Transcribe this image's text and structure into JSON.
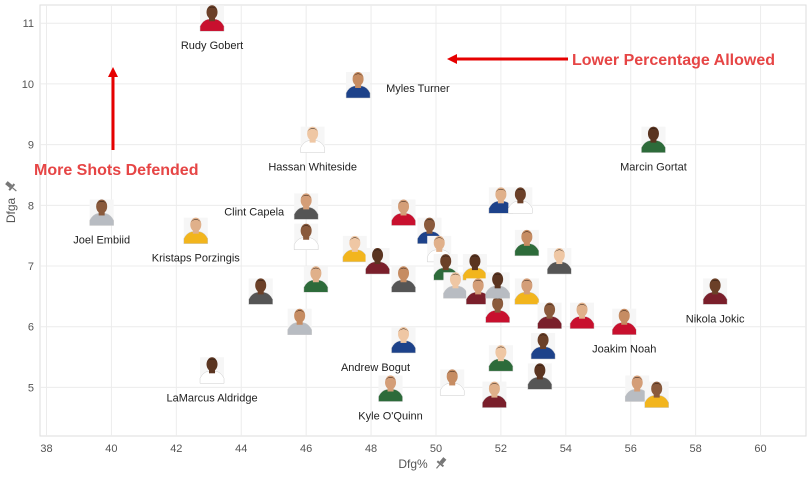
{
  "chart_data": {
    "type": "scatter",
    "xlabel": "Dfg%",
    "ylabel": "Dfga",
    "xlim": [
      37.8,
      61.4
    ],
    "ylim": [
      4.2,
      11.3
    ],
    "xticks": [
      38,
      40,
      42,
      44,
      46,
      48,
      50,
      52,
      54,
      56,
      58,
      60
    ],
    "yticks": [
      5,
      6,
      7,
      8,
      9,
      10,
      11
    ],
    "grid": true,
    "marker": "player-headshot",
    "annotations": [
      {
        "text": "More Shots Defended",
        "arrow": "up",
        "color": "#e64545"
      },
      {
        "text": "Lower Percentage Allowed",
        "arrow": "left",
        "color": "#e64545"
      }
    ],
    "labeled_points": [
      {
        "label": "Rudy Gobert",
        "x": 43.1,
        "y": 11.0
      },
      {
        "label": "Myles Turner",
        "x": 47.6,
        "y": 9.9
      },
      {
        "label": "Hassan Whiteside",
        "x": 46.2,
        "y": 9.0
      },
      {
        "label": "Marcin Gortat",
        "x": 56.7,
        "y": 9.0
      },
      {
        "label": "Clint Capela",
        "x": 46.0,
        "y": 7.9
      },
      {
        "label": "Joel Embiid",
        "x": 39.7,
        "y": 7.8
      },
      {
        "label": "Kristaps Porzingis",
        "x": 42.6,
        "y": 7.5
      },
      {
        "label": "Nikola Jokic",
        "x": 58.6,
        "y": 6.5
      },
      {
        "label": "Joakim Noah",
        "x": 55.8,
        "y": 6.0
      },
      {
        "label": "Andrew Bogut",
        "x": 49.0,
        "y": 5.7
      },
      {
        "label": "LaMarcus Aldridge",
        "x": 43.1,
        "y": 5.2
      },
      {
        "label": "Kyle O'Quinn",
        "x": 48.6,
        "y": 4.9
      }
    ],
    "other_points": [
      {
        "x": 46.0,
        "y": 7.4
      },
      {
        "x": 46.3,
        "y": 6.7
      },
      {
        "x": 44.6,
        "y": 6.5
      },
      {
        "x": 45.8,
        "y": 6.0
      },
      {
        "x": 47.5,
        "y": 7.2
      },
      {
        "x": 48.2,
        "y": 7.0
      },
      {
        "x": 49.0,
        "y": 7.8
      },
      {
        "x": 49.8,
        "y": 7.5
      },
      {
        "x": 50.1,
        "y": 7.2
      },
      {
        "x": 50.3,
        "y": 6.9
      },
      {
        "x": 49.0,
        "y": 6.7
      },
      {
        "x": 50.6,
        "y": 6.6
      },
      {
        "x": 51.2,
        "y": 6.9
      },
      {
        "x": 51.3,
        "y": 6.5
      },
      {
        "x": 51.9,
        "y": 6.2
      },
      {
        "x": 52.0,
        "y": 8.0
      },
      {
        "x": 52.6,
        "y": 8.0
      },
      {
        "x": 52.8,
        "y": 7.3
      },
      {
        "x": 53.8,
        "y": 7.0
      },
      {
        "x": 51.9,
        "y": 6.6
      },
      {
        "x": 52.8,
        "y": 6.5
      },
      {
        "x": 53.5,
        "y": 6.1
      },
      {
        "x": 54.5,
        "y": 6.1
      },
      {
        "x": 53.3,
        "y": 5.6
      },
      {
        "x": 50.5,
        "y": 5.0
      },
      {
        "x": 52.0,
        "y": 5.4
      },
      {
        "x": 53.2,
        "y": 5.1
      },
      {
        "x": 56.2,
        "y": 4.9
      },
      {
        "x": 56.8,
        "y": 4.8
      },
      {
        "x": 51.8,
        "y": 4.8
      }
    ]
  }
}
